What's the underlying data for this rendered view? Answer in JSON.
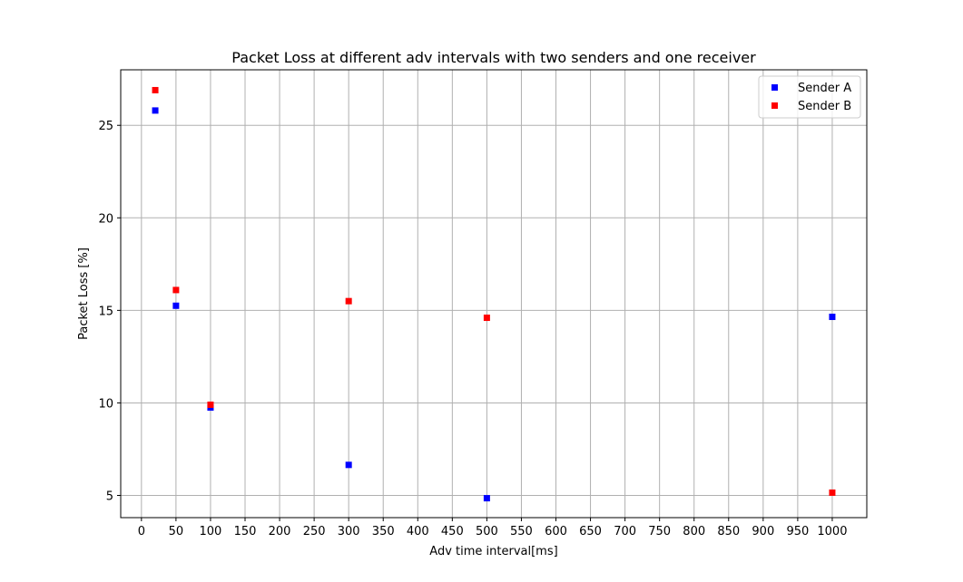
{
  "chart_data": {
    "type": "scatter",
    "title": "Packet Loss at different adv intervals with two senders and one receiver",
    "xlabel": "Adv time interval[ms]",
    "ylabel": "Packet Loss [%]",
    "xlim": [
      -30,
      1050
    ],
    "ylim": [
      3.8,
      28.0
    ],
    "xticks": [
      0,
      50,
      100,
      150,
      200,
      250,
      300,
      350,
      400,
      450,
      500,
      550,
      600,
      650,
      700,
      750,
      800,
      850,
      900,
      950,
      1000
    ],
    "yticks": [
      5,
      10,
      15,
      20,
      25
    ],
    "grid": true,
    "legend_position": "top-right",
    "series": [
      {
        "name": "Sender A",
        "color": "#0000ff",
        "marker": "square",
        "points": [
          {
            "x": 20,
            "y": 25.8
          },
          {
            "x": 50,
            "y": 15.25
          },
          {
            "x": 100,
            "y": 9.75
          },
          {
            "x": 300,
            "y": 6.65
          },
          {
            "x": 500,
            "y": 4.85
          },
          {
            "x": 1000,
            "y": 14.65
          }
        ]
      },
      {
        "name": "Sender B",
        "color": "#ff0000",
        "marker": "square",
        "points": [
          {
            "x": 20,
            "y": 26.9
          },
          {
            "x": 50,
            "y": 16.1
          },
          {
            "x": 100,
            "y": 9.9
          },
          {
            "x": 300,
            "y": 15.5
          },
          {
            "x": 500,
            "y": 14.6
          },
          {
            "x": 1000,
            "y": 5.15
          }
        ]
      }
    ]
  }
}
